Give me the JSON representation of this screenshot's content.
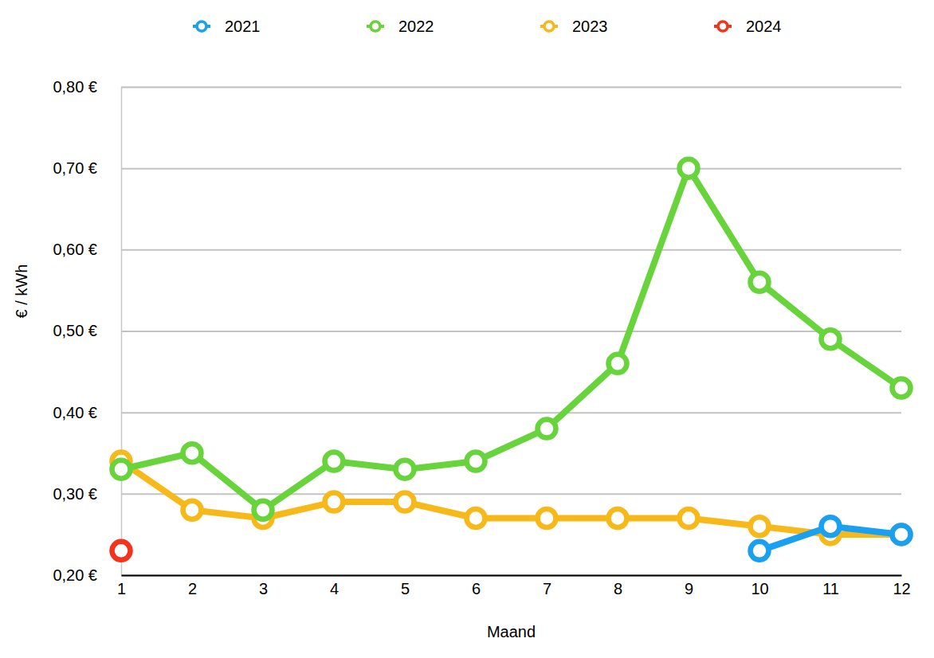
{
  "chart_data": {
    "type": "line",
    "x_label": "Maand",
    "y_label": "€ / kWh",
    "x": [
      1,
      2,
      3,
      4,
      5,
      6,
      7,
      8,
      9,
      10,
      11,
      12
    ],
    "xlim": [
      1,
      12
    ],
    "xticks": [
      1,
      2,
      3,
      4,
      5,
      6,
      7,
      8,
      9,
      10,
      11,
      12
    ],
    "ylim": [
      0.2,
      0.8
    ],
    "yticks": [
      {
        "value": 0.2,
        "label": "0,20 €"
      },
      {
        "value": 0.3,
        "label": "0,30 €"
      },
      {
        "value": 0.4,
        "label": "0,40 €"
      },
      {
        "value": 0.5,
        "label": "0,50 €"
      },
      {
        "value": 0.6,
        "label": "0,60 €"
      },
      {
        "value": 0.7,
        "label": "0,70 €"
      },
      {
        "value": 0.8,
        "label": "0,80 €"
      }
    ],
    "grid": true,
    "legend": "top",
    "marker": "circle",
    "series": [
      {
        "name": "2021",
        "color": "#1aa0f0",
        "values": [
          null,
          null,
          null,
          null,
          null,
          null,
          null,
          null,
          null,
          0.23,
          0.26,
          0.25
        ]
      },
      {
        "name": "2022",
        "color": "#66d43a",
        "values": [
          0.33,
          0.35,
          0.28,
          0.34,
          0.33,
          0.34,
          0.38,
          0.46,
          0.7,
          0.56,
          0.49,
          0.43
        ]
      },
      {
        "name": "2023",
        "color": "#f7b81a",
        "values": [
          0.34,
          0.28,
          0.27,
          0.29,
          0.29,
          0.27,
          0.27,
          0.27,
          0.27,
          0.26,
          0.25,
          0.25
        ]
      },
      {
        "name": "2024",
        "color": "#f5321c",
        "values": [
          0.23,
          null,
          null,
          null,
          null,
          null,
          null,
          null,
          null,
          null,
          null,
          null
        ]
      }
    ]
  }
}
